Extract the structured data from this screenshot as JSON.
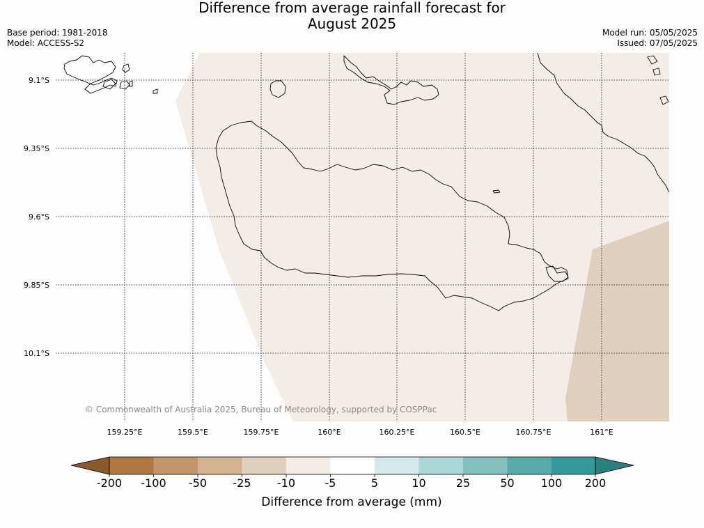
{
  "header": {
    "title_line1": "Difference from average rainfall forecast for",
    "title_line2": "August 2025",
    "base_period": "Base period: 1981-2018",
    "model": "Model: ACCESS-S2",
    "model_run": "Model run: 05/05/2025",
    "issued": "Issued: 07/05/2025"
  },
  "map": {
    "lat_labels": [
      "9.1°S",
      "9.35°S",
      "9.6°S",
      "9.85°S",
      "10.1°S"
    ],
    "lon_labels": [
      "159.25°E",
      "159.5°E",
      "159.75°E",
      "160°E",
      "160.25°E",
      "160.5°E",
      "160.75°E",
      "161°E"
    ],
    "copyright": "© Commonwealth of Australia 2025, Bureau of Meteorology, supported by COSPPac",
    "colors": {
      "band_minus10_to_minus5": "#f3ece7",
      "band_minus25_to_minus10": "#e1cfbd",
      "coastline": "#000000"
    }
  },
  "legend": {
    "title": "Difference from average (mm)",
    "ticks": [
      "-200",
      "-100",
      "-50",
      "-25",
      "-10",
      "-5",
      "5",
      "10",
      "25",
      "50",
      "100",
      "200"
    ],
    "colors": [
      "#8b5a2b",
      "#b07840",
      "#c3956a",
      "#d4b393",
      "#e2d0bf",
      "#f4ece7",
      "#ffffff",
      "#d4e9e9",
      "#acd7d7",
      "#80c1c0",
      "#58abab",
      "#339999",
      "#2a7f7f"
    ]
  }
}
